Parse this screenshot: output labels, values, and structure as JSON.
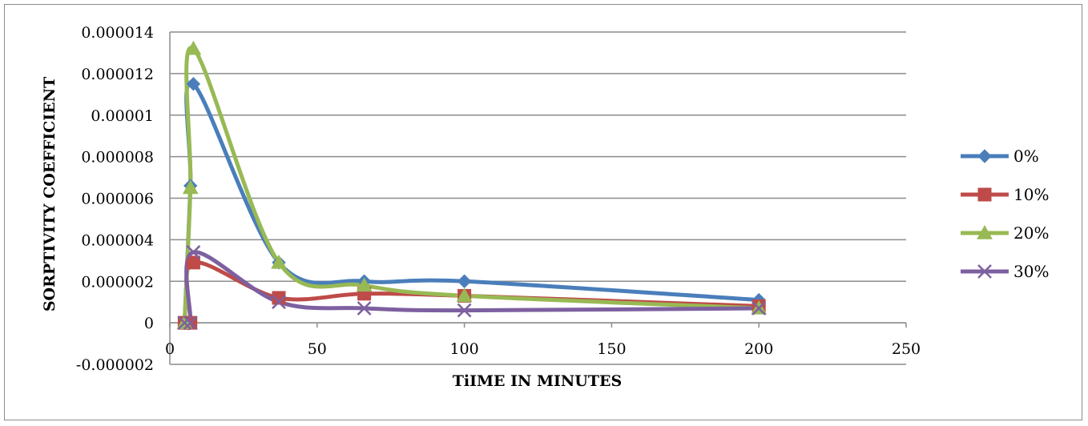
{
  "chart_data": {
    "type": "line",
    "smooth": true,
    "title": "",
    "xlabel": "TiIME IN MINUTES",
    "ylabel": "SORPTIVITY COEFFICIENT",
    "xlim": [
      0,
      250
    ],
    "ylim": [
      -2e-06,
      1.4e-05
    ],
    "x_ticks": [
      "0",
      "50",
      "100",
      "150",
      "200",
      "250"
    ],
    "y_ticks": [
      "-0.000002",
      "0",
      "0.000002",
      "0.000004",
      "0.000006",
      "0.000008",
      "0.00001",
      "0.000012",
      "0.000014"
    ],
    "grid": "horizontal",
    "legend_position": "right",
    "series": [
      {
        "name": "0%",
        "color": "#4a7ebb",
        "marker": "diamond",
        "points": [
          [
            5,
            0.0
          ],
          [
            7,
            6.6e-06
          ],
          [
            8,
            1.15e-05
          ],
          [
            37,
            2.9e-06
          ],
          [
            66,
            2e-06
          ],
          [
            100,
            2e-06
          ],
          [
            200,
            1.1e-06
          ]
        ]
      },
      {
        "name": "10%",
        "color": "#be4b48",
        "marker": "square",
        "points": [
          [
            5,
            0.0
          ],
          [
            7,
            0.0
          ],
          [
            8,
            2.9e-06
          ],
          [
            37,
            1.2e-06
          ],
          [
            66,
            1.4e-06
          ],
          [
            100,
            1.3e-06
          ],
          [
            200,
            8e-07
          ]
        ]
      },
      {
        "name": "20%",
        "color": "#98b954",
        "marker": "triangle",
        "points": [
          [
            5,
            0.0
          ],
          [
            7,
            6.5e-06
          ],
          [
            8,
            1.32e-05
          ],
          [
            37,
            2.9e-06
          ],
          [
            66,
            1.8e-06
          ],
          [
            100,
            1.3e-06
          ],
          [
            200,
            7e-07
          ]
        ]
      },
      {
        "name": "30%",
        "color": "#7d60a0",
        "marker": "x",
        "points": [
          [
            5,
            0.0
          ],
          [
            7,
            0.0
          ],
          [
            8,
            3.4e-06
          ],
          [
            37,
            1e-06
          ],
          [
            66,
            7e-07
          ],
          [
            100,
            6e-07
          ],
          [
            200,
            7e-07
          ]
        ]
      }
    ]
  }
}
